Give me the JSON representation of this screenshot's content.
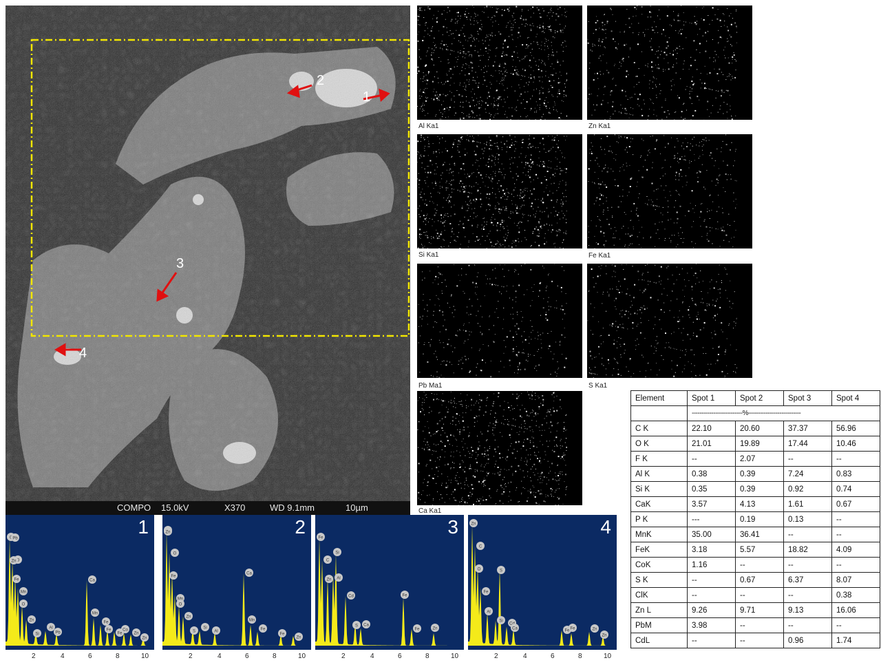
{
  "sem": {
    "footer": {
      "mode": "COMPO",
      "voltage": "15.0kV",
      "magnification": "X370",
      "working_distance": "WD 9.1mm",
      "scale": "10µm"
    },
    "spot_labels": [
      "1",
      "2",
      "3",
      "4"
    ]
  },
  "maps": [
    {
      "label": "Al Ka1"
    },
    {
      "label": "Zn Ka1"
    },
    {
      "label": "Si Ka1"
    },
    {
      "label": "Fe Ka1"
    },
    {
      "label": "Pb Ma1"
    },
    {
      "label": "S Ka1"
    },
    {
      "label": "Ca Ka1"
    }
  ],
  "spectra": [
    {
      "number": "1",
      "ticks": [
        "2",
        "4",
        "6",
        "8",
        "10"
      ],
      "peaks": [
        "C",
        "O",
        "Fe",
        "Mn",
        "O",
        "Zn",
        "Si",
        "Al",
        "Pb",
        "Ca",
        "Mn",
        "Fe",
        "Fe",
        "Fe",
        "Co",
        "Zn",
        "Zn",
        "Pb",
        "Zn"
      ]
    },
    {
      "number": "2",
      "ticks": [
        "2",
        "4",
        "6",
        "8",
        "10"
      ],
      "peaks": [
        "C",
        "O",
        "Fe",
        "Mn",
        "O",
        "Zn",
        "S",
        "Si",
        "Al",
        "Ca",
        "Mn",
        "Fe",
        "Fe",
        "Zn",
        "Zn"
      ]
    },
    {
      "number": "3",
      "ticks": [
        "2",
        "4",
        "6",
        "8",
        "10"
      ],
      "peaks": [
        "Fe",
        "C",
        "Zn",
        "Al",
        "Si",
        "Cd",
        "S",
        "Ca",
        "Fe",
        "Fe",
        "Zn"
      ]
    },
    {
      "number": "4",
      "ticks": [
        "2",
        "4",
        "6",
        "8",
        "10"
      ],
      "peaks": [
        "Zn",
        "C",
        "O",
        "Fe",
        "Al",
        "Si",
        "S",
        "Cd",
        "Ca",
        "Fe",
        "Fe",
        "Zn",
        "Zn"
      ]
    }
  ],
  "table": {
    "headers": [
      "Element",
      "Spot 1",
      "Spot 2",
      "Spot 3",
      "Spot 4"
    ],
    "unit_row": "--------------------------%---------------------------",
    "rows": [
      [
        "C K",
        "22.10",
        "20.60",
        "37.37",
        "56.96"
      ],
      [
        "O K",
        "21.01",
        "19.89",
        "17.44",
        "10.46"
      ],
      [
        "F K",
        "--",
        "2.07",
        "--",
        "--"
      ],
      [
        "Al K",
        "0.38",
        "0.39",
        "7.24",
        "0.83"
      ],
      [
        "Si K",
        "0.35",
        "0.39",
        "0.92",
        "0.74"
      ],
      [
        "CaK",
        "3.57",
        "4.13",
        "1.61",
        "0.67"
      ],
      [
        "P K",
        "---",
        "0.19",
        "0.13",
        "--"
      ],
      [
        "MnK",
        "35.00",
        "36.41",
        "--",
        "--"
      ],
      [
        "FeK",
        "3.18",
        "5.57",
        "18.82",
        "4.09"
      ],
      [
        "CoK",
        "1.16",
        "--",
        "--",
        "--"
      ],
      [
        "S K",
        "--",
        "0.67",
        "6.37",
        "8.07"
      ],
      [
        "ClK",
        "--",
        "--",
        "--",
        "0.38"
      ],
      [
        "Zn L",
        "9.26",
        "9.71",
        "9.13",
        "16.06"
      ],
      [
        "PbM",
        "3.98",
        "--",
        "--",
        "--"
      ],
      [
        "CdL",
        "--",
        "--",
        "0.96",
        "1.74"
      ]
    ]
  },
  "colors": {
    "roi_box": "#f2e600",
    "arrow": "#e01010",
    "spectrum_bg": "#0b2a63",
    "spectrum_fill": "#f4ea1a"
  }
}
